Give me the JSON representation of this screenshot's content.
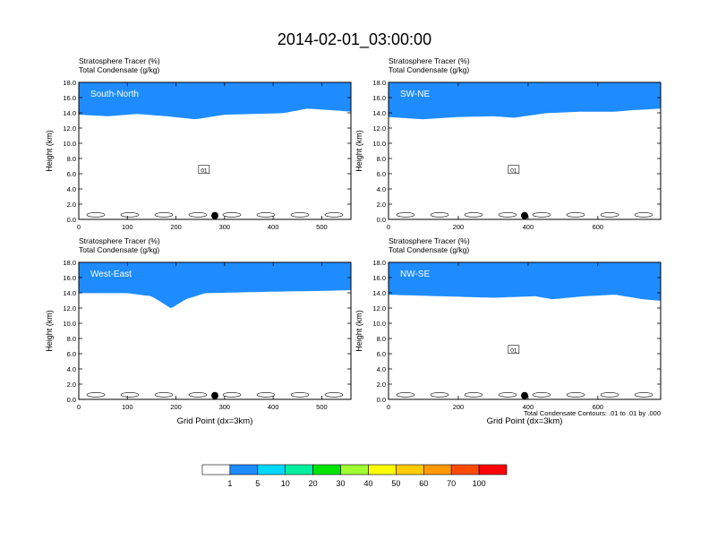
{
  "chart_data": {
    "type": "heatmap",
    "title": "2014-02-01_03:00:00",
    "colorbar": {
      "colors": [
        "#ffffff",
        "#1e8cff",
        "#00d8ff",
        "#00f0a0",
        "#00e400",
        "#a0ff30",
        "#ffff00",
        "#ffcc00",
        "#ff9900",
        "#ff4b00",
        "#ff0000"
      ],
      "tick_labels": [
        "1",
        "5",
        "10",
        "20",
        "30",
        "40",
        "50",
        "60",
        "70",
        "100"
      ]
    },
    "footnote": "Total Condensate Contours: .01 to .01 by .000",
    "panels": [
      {
        "name": "South-North",
        "header_top": "Stratosphere Tracer   (%)",
        "header_bottom": "Total Condensate   (g/kg)",
        "ylabel": "Height (km)",
        "xlabel": "",
        "xlim": [
          0,
          560
        ],
        "ylim": [
          0,
          18
        ],
        "x_ticks": [
          "0",
          "100",
          "200",
          "300",
          "400",
          "500"
        ],
        "y_ticks": [
          "0.0",
          "2.0",
          "4.0",
          "6.0",
          "8.0",
          "10.0",
          "12.0",
          "14.0",
          "16.0",
          "18.0"
        ],
        "contour_label": "01",
        "marker_x": 280,
        "tropopause_km": [
          [
            0,
            14.8
          ],
          [
            60,
            14.6
          ],
          [
            120,
            14.9
          ],
          [
            180,
            14.6
          ],
          [
            240,
            14.2
          ],
          [
            300,
            14.8
          ],
          [
            360,
            14.9
          ],
          [
            420,
            15.0
          ],
          [
            470,
            15.6
          ],
          [
            520,
            15.4
          ],
          [
            560,
            15.2
          ]
        ]
      },
      {
        "name": "SW-NE",
        "header_top": "Stratosphere Tracer   (%)",
        "header_bottom": "Total Condensate   (g/kg)",
        "ylabel": "Height (km)",
        "xlabel": "",
        "xlim": [
          0,
          780
        ],
        "ylim": [
          0,
          18
        ],
        "x_ticks": [
          "0",
          "200",
          "400",
          "600"
        ],
        "y_ticks": [
          "0.0",
          "2.0",
          "4.0",
          "6.0",
          "8.0",
          "10.0",
          "12.0",
          "14.0",
          "16.0",
          "18.0"
        ],
        "contour_label": "01",
        "marker_x": 390,
        "tropopause_km": [
          [
            0,
            14.5
          ],
          [
            100,
            14.2
          ],
          [
            200,
            14.5
          ],
          [
            300,
            14.6
          ],
          [
            360,
            14.4
          ],
          [
            450,
            15.0
          ],
          [
            550,
            15.2
          ],
          [
            650,
            15.2
          ],
          [
            700,
            15.4
          ],
          [
            780,
            15.6
          ]
        ]
      },
      {
        "name": "West-East",
        "header_top": "Stratosphere Tracer   (%)",
        "header_bottom": "Total Condensate   (g/kg)",
        "ylabel": "Height (km)",
        "xlabel": "Grid Point (dx=3km)",
        "xlim": [
          0,
          560
        ],
        "ylim": [
          0,
          18
        ],
        "x_ticks": [
          "0",
          "100",
          "200",
          "300",
          "400",
          "500"
        ],
        "y_ticks": [
          "0.0",
          "2.0",
          "4.0",
          "6.0",
          "8.0",
          "10.0",
          "12.0",
          "14.0",
          "16.0",
          "18.0"
        ],
        "contour_label": "",
        "marker_x": 280,
        "tropopause_km": [
          [
            0,
            15.0
          ],
          [
            100,
            15.0
          ],
          [
            150,
            14.6
          ],
          [
            190,
            13.0
          ],
          [
            220,
            14.2
          ],
          [
            260,
            15.0
          ],
          [
            400,
            15.2
          ],
          [
            500,
            15.3
          ],
          [
            560,
            15.4
          ]
        ]
      },
      {
        "name": "NW-SE",
        "header_top": "Stratosphere Tracer   (%)",
        "header_bottom": "Total Condensate   (g/kg)",
        "ylabel": "Height (km)",
        "xlabel": "Grid Point (dx=3km)",
        "xlim": [
          0,
          780
        ],
        "ylim": [
          0,
          18
        ],
        "x_ticks": [
          "0",
          "200",
          "400",
          "600"
        ],
        "y_ticks": [
          "0.0",
          "2.0",
          "4.0",
          "6.0",
          "8.0",
          "10.0",
          "12.0",
          "14.0",
          "16.0",
          "18.0"
        ],
        "contour_label": "01",
        "marker_x": 390,
        "tropopause_km": [
          [
            0,
            14.8
          ],
          [
            150,
            14.6
          ],
          [
            300,
            14.4
          ],
          [
            420,
            14.6
          ],
          [
            470,
            14.2
          ],
          [
            560,
            14.6
          ],
          [
            650,
            14.8
          ],
          [
            730,
            14.2
          ],
          [
            780,
            14.0
          ]
        ]
      }
    ]
  }
}
